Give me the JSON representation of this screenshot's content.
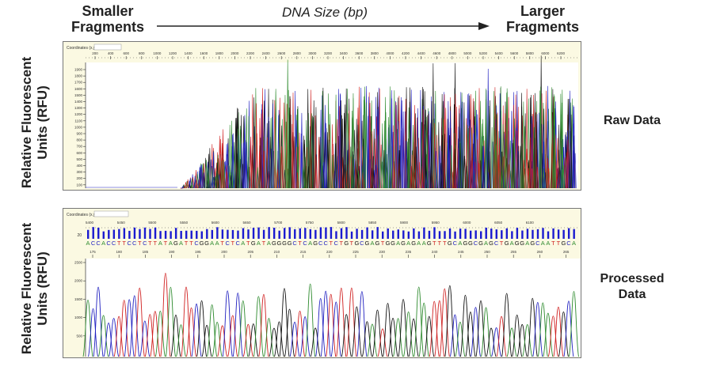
{
  "header": {
    "left": "Smaller Fragments",
    "middle": "DNA Size (bp)",
    "right": "Larger Fragments"
  },
  "y_axis_label": "Relative Fluorescent Units (RFU)",
  "raw_panel": {
    "label": "Raw Data",
    "coord_label": "Coordinates (x,y)",
    "x_ticks": [
      "200",
      "400",
      "600",
      "800",
      "1000",
      "1200",
      "1400",
      "1600",
      "1800",
      "2000",
      "2200",
      "2400",
      "2600",
      "2800",
      "3000",
      "3200",
      "3400",
      "3600",
      "3800",
      "4000",
      "4200",
      "4400",
      "4600",
      "4800",
      "5000",
      "5200",
      "5400",
      "5600",
      "5800",
      "6000",
      "6200"
    ],
    "y_ticks": [
      "1900",
      "1800",
      "1700",
      "1600",
      "1500",
      "1400",
      "1300",
      "1200",
      "1100",
      "1000",
      "900",
      "800",
      "700",
      "600",
      "500",
      "400",
      "300",
      "200",
      "100"
    ]
  },
  "processed_panel": {
    "label": "Processed Data",
    "coord_label": "Coordinates (x,y)",
    "scan_ticks": [
      "5400",
      "5450",
      "5500",
      "5550",
      "5600",
      "5650",
      "5700",
      "5750",
      "5800",
      "5850",
      "5900",
      "5950",
      "6000",
      "6050",
      "6100"
    ],
    "bp_ticks": [
      "175",
      "180",
      "185",
      "190",
      "195",
      "200",
      "205",
      "210",
      "215",
      "220",
      "225",
      "230",
      "235",
      "240",
      "245",
      "250",
      "255",
      "260",
      "265"
    ],
    "qv_label": "20",
    "sequence": "ACCACCTTCCTCTTATAGATTCGGAATCTCATGATAGGGGCTCAGCCTCTGTGCGAGTGGAGAGAAGTTTGCAGGCGAGCTGAGGAGCAATTGCA",
    "y_ticks": [
      "2500",
      "2000",
      "1500",
      "1000",
      "500"
    ]
  },
  "colors": {
    "A": "#2e8b2e",
    "C": "#2020c0",
    "G": "#111111",
    "T": "#d02020",
    "panel_header": "#fbf9e2",
    "qv_bar": "#1a1ad0"
  }
}
